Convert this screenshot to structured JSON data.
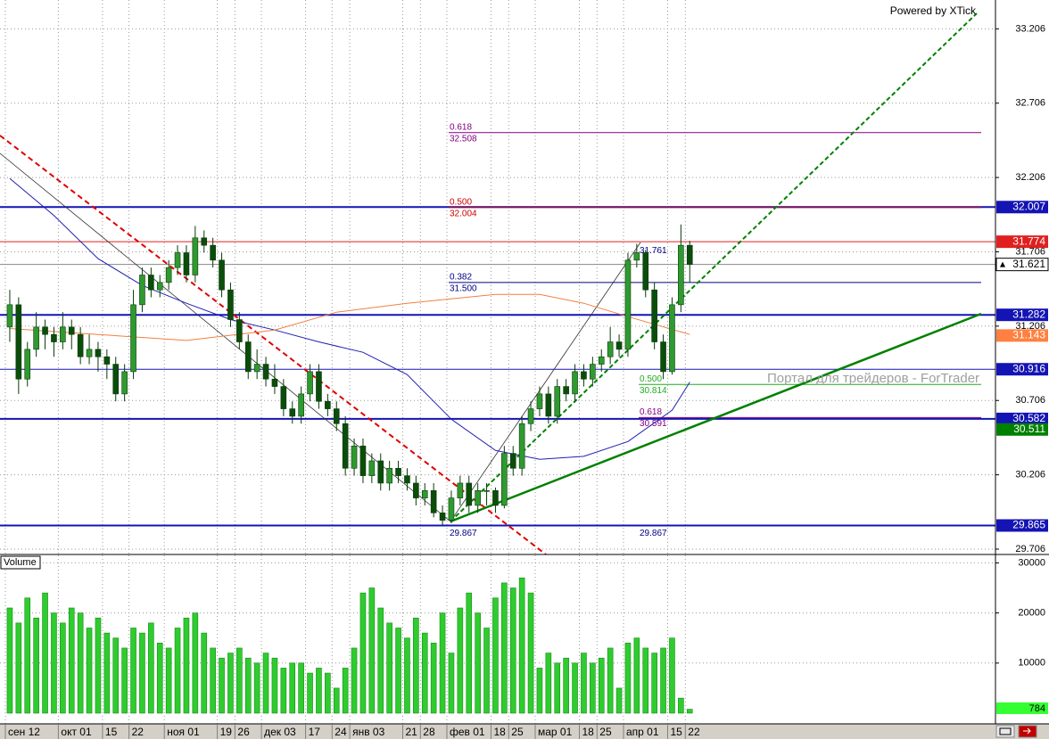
{
  "header": {
    "powered": "Powered by XTick",
    "watermark": "Портал для трейдеров - ForTrader"
  },
  "chart_data": [
    {
      "type": "candlestick",
      "categories": [
        "сен 12",
        null,
        null,
        null,
        null,
        null,
        "окт 01",
        null,
        null,
        null,
        null,
        "15",
        null,
        null,
        "22",
        null,
        null,
        null,
        "ноя 01",
        null,
        null,
        null,
        null,
        null,
        "19",
        null,
        "26",
        null,
        null,
        "дек 03",
        null,
        null,
        null,
        null,
        "17",
        null,
        null,
        "24",
        null,
        "янв 03",
        null,
        null,
        null,
        null,
        null,
        "21",
        null,
        "28",
        null,
        null,
        "фев 01",
        null,
        null,
        null,
        null,
        "18",
        null,
        "25",
        null,
        null,
        "мар 01",
        null,
        null,
        null,
        null,
        "18",
        null,
        "25",
        null,
        null,
        "апр 01",
        null,
        null,
        null,
        null,
        "15",
        null,
        "22"
      ],
      "open": [
        31.2,
        31.35,
        30.85,
        31.05,
        31.2,
        31.15,
        31.1,
        31.2,
        31.15,
        31.0,
        31.05,
        31.0,
        30.95,
        30.75,
        30.9,
        31.35,
        31.55,
        31.45,
        31.5,
        31.6,
        31.7,
        31.55,
        31.8,
        31.75,
        31.65,
        31.45,
        31.25,
        31.1,
        30.9,
        30.95,
        30.85,
        30.8,
        30.65,
        30.6,
        30.75,
        30.9,
        30.7,
        30.65,
        30.55,
        30.25,
        30.4,
        30.2,
        30.3,
        30.15,
        30.25,
        30.2,
        30.15,
        30.05,
        30.1,
        29.95,
        29.9,
        30.05,
        30.15,
        30.0,
        30.1,
        30.1,
        30.0,
        30.35,
        30.25,
        30.55,
        30.65,
        30.75,
        30.6,
        30.8,
        30.75,
        30.9,
        30.85,
        30.95,
        31.0,
        31.1,
        31.05,
        31.65,
        31.7,
        31.45,
        31.1,
        30.9,
        31.35,
        31.75
      ],
      "high": [
        31.45,
        31.4,
        31.1,
        31.3,
        31.25,
        31.2,
        31.3,
        31.25,
        31.2,
        31.15,
        31.1,
        31.05,
        31.0,
        30.95,
        31.45,
        31.6,
        31.6,
        31.55,
        31.65,
        31.75,
        31.75,
        31.88,
        31.85,
        31.8,
        31.7,
        31.5,
        31.3,
        31.15,
        31.05,
        31.0,
        30.95,
        30.85,
        30.7,
        30.8,
        30.95,
        30.95,
        30.75,
        30.7,
        30.6,
        30.45,
        30.45,
        30.35,
        30.35,
        30.3,
        30.3,
        30.25,
        30.2,
        30.15,
        30.15,
        30.0,
        30.1,
        30.2,
        30.2,
        30.15,
        30.15,
        30.12,
        30.4,
        30.4,
        30.6,
        30.7,
        30.8,
        30.8,
        30.85,
        30.85,
        30.95,
        30.95,
        31.0,
        31.05,
        31.2,
        31.15,
        31.7,
        31.76,
        31.72,
        31.5,
        31.15,
        31.4,
        31.89,
        31.78
      ],
      "low": [
        31.1,
        30.75,
        30.8,
        31.0,
        31.05,
        31.0,
        31.05,
        31.05,
        30.95,
        30.95,
        30.9,
        30.85,
        30.7,
        30.7,
        30.85,
        31.3,
        31.4,
        31.4,
        31.45,
        31.55,
        31.5,
        31.5,
        31.7,
        31.6,
        31.4,
        31.2,
        31.05,
        30.85,
        30.85,
        30.8,
        30.75,
        30.6,
        30.55,
        30.55,
        30.7,
        30.65,
        30.6,
        30.5,
        30.2,
        30.2,
        30.15,
        30.15,
        30.1,
        30.1,
        30.15,
        30.1,
        30.0,
        30.0,
        29.92,
        29.87,
        29.88,
        30.0,
        29.95,
        29.95,
        30.0,
        29.95,
        29.98,
        30.2,
        30.2,
        30.5,
        30.6,
        30.55,
        30.55,
        30.7,
        30.7,
        30.8,
        30.8,
        30.9,
        30.95,
        31.0,
        31.0,
        31.6,
        31.4,
        31.05,
        30.85,
        30.88,
        31.3,
        31.5
      ],
      "close": [
        31.35,
        30.85,
        31.05,
        31.2,
        31.15,
        31.1,
        31.2,
        31.15,
        31.0,
        31.05,
        31.0,
        30.95,
        30.75,
        30.9,
        31.35,
        31.55,
        31.45,
        31.5,
        31.6,
        31.7,
        31.55,
        31.8,
        31.75,
        31.65,
        31.45,
        31.25,
        31.1,
        30.9,
        30.95,
        30.85,
        30.8,
        30.65,
        30.6,
        30.75,
        30.9,
        30.7,
        30.65,
        30.55,
        30.25,
        30.4,
        30.2,
        30.3,
        30.15,
        30.25,
        30.2,
        30.15,
        30.05,
        30.1,
        29.95,
        29.9,
        30.05,
        30.15,
        30.0,
        30.1,
        30.1,
        30.0,
        30.35,
        30.25,
        30.55,
        30.65,
        30.75,
        30.6,
        30.8,
        30.75,
        30.9,
        30.85,
        30.95,
        31.0,
        31.1,
        31.05,
        31.65,
        31.7,
        31.45,
        31.1,
        30.9,
        31.35,
        31.75,
        31.621
      ],
      "up_color": "#2f9a2f",
      "down_color": "#0b4d0b",
      "ylim": [
        29.67,
        33.4
      ],
      "yticks": [
        33.206,
        32.706,
        32.206,
        31.706,
        31.206,
        30.706,
        30.206,
        29.706
      ],
      "grid": true,
      "levels": [
        {
          "value": 32.007,
          "color": "#1414b4",
          "line": "thick"
        },
        {
          "value": 31.774,
          "color": "#e02020",
          "line": "thin"
        },
        {
          "value": 31.621,
          "color": "#ffffff",
          "line": "thin"
        },
        {
          "value": 31.282,
          "color": "#1414b4",
          "line": "thick"
        },
        {
          "value": 31.143,
          "color": "#ff8040",
          "line": "none"
        },
        {
          "value": 30.916,
          "color": "#1414b4",
          "line": "thin"
        },
        {
          "value": 30.582,
          "color": "#1414b4",
          "line": "thick"
        },
        {
          "value": 30.511,
          "color": "#008000",
          "line": "none"
        },
        {
          "value": 29.865,
          "color": "#1414b4",
          "line": "thick"
        }
      ],
      "fib": [
        {
          "levels": [
            {
              "ratio": "0.618",
              "value": 32.508,
              "color": "#800080"
            },
            {
              "ratio": "0.500",
              "value": 32.004,
              "color": "#cc0000"
            },
            {
              "ratio": "0.382",
              "value": {
                "value": 31.5,
                "label": "31.500"
              },
              "color": "#000080"
            },
            {
              "value": 29.867,
              "color": "#000080"
            }
          ]
        },
        {
          "levels": [
            {
              "value": 31.761,
              "color": "#000080"
            },
            {
              "ratio": "0.500",
              "value": 30.814,
              "color": "#22aa22"
            },
            {
              "ratio": "0.618",
              "value": 30.591,
              "color": "#800080"
            },
            {
              "value": 29.867,
              "color": "#000080"
            }
          ]
        }
      ],
      "overlays": [
        {
          "color": "#2020b0",
          "x": [
            0,
            5,
            10,
            15,
            20,
            25,
            30,
            35,
            40,
            45,
            50,
            55,
            60,
            65,
            70,
            75,
            77
          ],
          "values": [
            32.2,
            31.95,
            31.66,
            31.48,
            31.36,
            31.25,
            31.18,
            31.1,
            31.03,
            30.88,
            30.58,
            30.37,
            30.31,
            30.33,
            30.43,
            30.64,
            30.83
          ]
        },
        {
          "color": "#f08040",
          "x": [
            0,
            10,
            20,
            30,
            37,
            45,
            55,
            60,
            65,
            70,
            77
          ],
          "values": [
            31.19,
            31.15,
            31.11,
            31.18,
            31.3,
            31.36,
            31.42,
            31.42,
            31.36,
            31.27,
            31.15
          ]
        }
      ]
    },
    {
      "type": "bar",
      "title": "Volume",
      "values": [
        21000,
        18000,
        23000,
        19000,
        24000,
        20000,
        18000,
        21000,
        20000,
        17000,
        19000,
        16000,
        15000,
        13000,
        17000,
        16000,
        18000,
        14000,
        13000,
        17000,
        19000,
        20000,
        16000,
        13000,
        11000,
        12000,
        13000,
        11000,
        10000,
        12000,
        11000,
        9000,
        10000,
        10000,
        8000,
        9000,
        8000,
        5000,
        9000,
        13000,
        24000,
        25000,
        21000,
        18000,
        17000,
        15000,
        19000,
        16000,
        14000,
        20000,
        12000,
        21000,
        24000,
        20000,
        17000,
        23000,
        26000,
        25000,
        27000,
        24000,
        9000,
        12000,
        10000,
        11000,
        10000,
        12000,
        10000,
        11000,
        13000,
        5000,
        14000,
        15000,
        13000,
        12000,
        13000,
        15000,
        3000,
        784
      ],
      "color": "#2ecc2e",
      "ylim": [
        0,
        31500
      ],
      "yticks": [
        10000,
        20000,
        30000
      ]
    }
  ]
}
